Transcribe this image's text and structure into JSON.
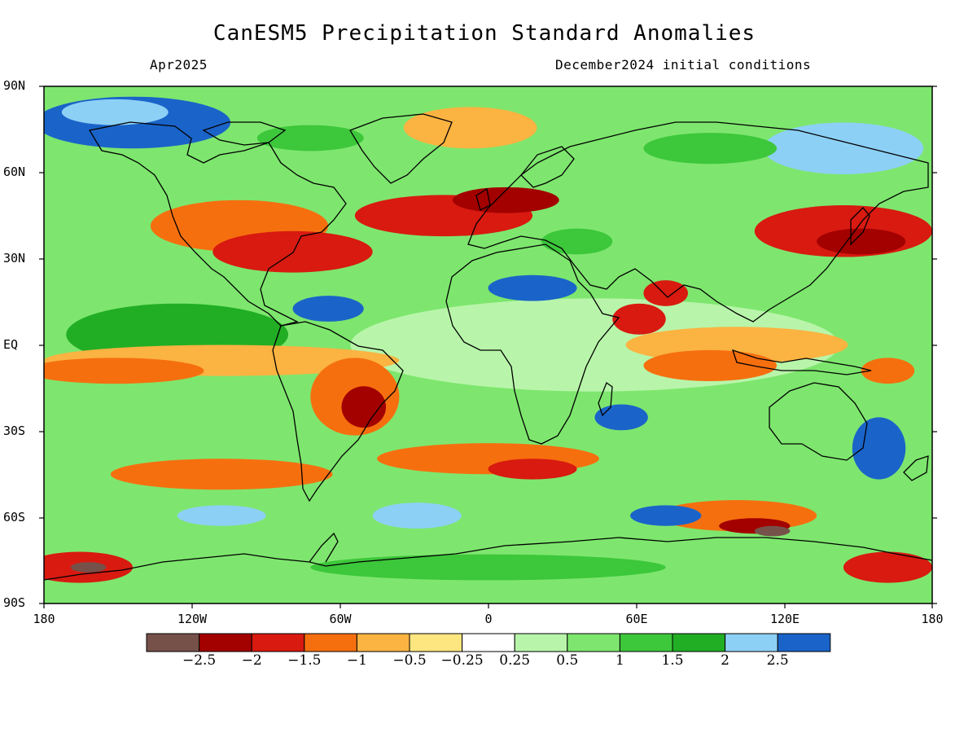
{
  "title": "CanESM5 Precipitation Standard Anomalies",
  "subtitle_left": "Apr2025",
  "subtitle_right": "December2024 initial conditions",
  "lat_labels": [
    "90N",
    "60N",
    "30N",
    "EQ",
    "30S",
    "60S",
    "90S"
  ],
  "lon_labels": [
    "180",
    "120W",
    "60W",
    "0",
    "60E",
    "120E",
    "180"
  ],
  "colorbar": {
    "colors": [
      "#76514a",
      "#a30000",
      "#d81a10",
      "#f66f0f",
      "#fbb341",
      "#fde680",
      "#ffffff",
      "#b8f5aa",
      "#7ee66e",
      "#3dc73b",
      "#21ae24",
      "#8dd0f5",
      "#1a64c9"
    ],
    "labels": [
      "−2.5",
      "−2",
      "−1.5",
      "−1",
      "−0.5",
      "−0.25",
      "0.25",
      "0.5",
      "1",
      "1.5",
      "2",
      "2.5"
    ]
  }
}
